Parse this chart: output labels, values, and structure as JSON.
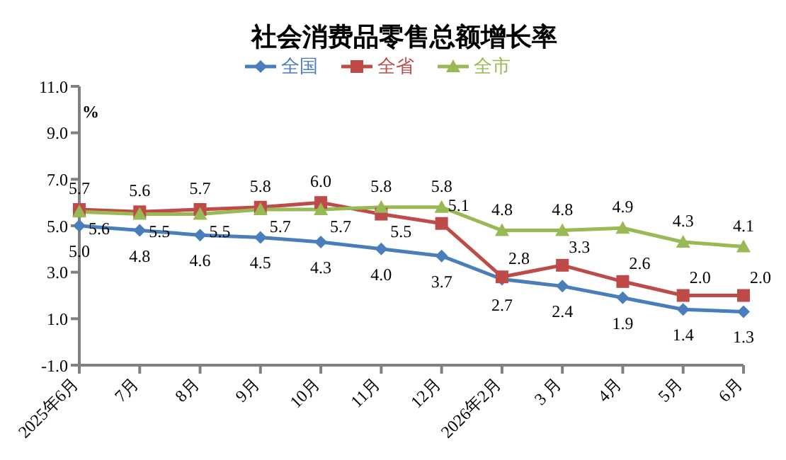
{
  "chart_data": {
    "type": "line",
    "title": "社会消费品零售总额增长率",
    "ylabel": "%",
    "categories": [
      "2025年6月",
      "7月",
      "8月",
      "9月",
      "10月",
      "11月",
      "12月",
      "2026年2月",
      "3 月",
      "4月",
      "5月",
      "6月"
    ],
    "series": [
      {
        "name": "全国",
        "color": "#4a7ebb",
        "marker": "diamond",
        "values": [
          5.0,
          4.8,
          4.6,
          4.5,
          4.3,
          4.0,
          3.7,
          2.7,
          2.4,
          1.9,
          1.4,
          1.3
        ],
        "value_labels": [
          "5.0",
          "4.8",
          "4.6",
          "4.5",
          "4.3",
          "4.0",
          "3.7",
          "2.7",
          "2.4",
          "1.9",
          "1.4",
          "1.3"
        ]
      },
      {
        "name": "全省",
        "color": "#be4b48",
        "marker": "square",
        "values": [
          5.7,
          5.6,
          5.7,
          5.8,
          6.0,
          5.5,
          5.1,
          2.8,
          3.3,
          2.6,
          2.0,
          2.0
        ],
        "value_labels": [
          "5.7",
          "5.6",
          "5.7",
          "5.8",
          "6.0",
          "5.5",
          "5.1",
          "2.8",
          "3.3",
          "2.6",
          "2.0",
          "2.0"
        ]
      },
      {
        "name": "全市",
        "color": "#98b954",
        "marker": "triangle",
        "values": [
          5.6,
          5.5,
          5.5,
          5.7,
          5.7,
          5.8,
          5.8,
          4.8,
          4.8,
          4.9,
          4.3,
          4.1
        ],
        "value_labels": [
          "5.6",
          "5.5",
          "5.5",
          "5.7",
          "5.7",
          "5.8",
          "5.8",
          "4.8",
          "4.8",
          "4.9",
          "4.3",
          "4.1"
        ]
      }
    ],
    "ylim": [
      -1,
      11
    ],
    "yticks": [
      {
        "value": -1,
        "label": "-1.0"
      },
      {
        "value": 1,
        "label": "1.0"
      },
      {
        "value": 3,
        "label": "3.0"
      },
      {
        "value": 5,
        "label": "5.0"
      },
      {
        "value": 7,
        "label": "7.0"
      },
      {
        "value": 9,
        "label": "9.0"
      },
      {
        "value": 11,
        "label": "11.0"
      }
    ],
    "grid": false,
    "legend": "top",
    "line_style": "solid"
  }
}
